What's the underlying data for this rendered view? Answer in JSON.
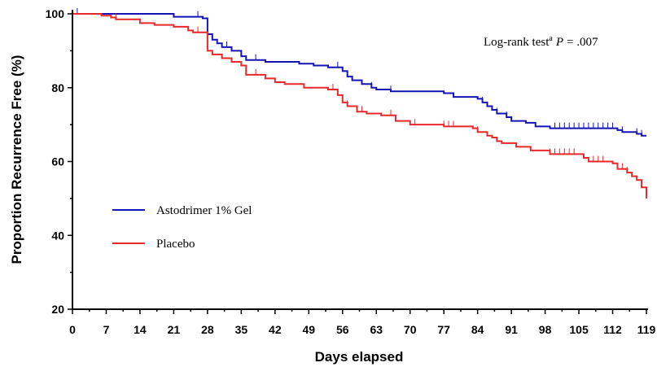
{
  "chart_data": {
    "type": "line",
    "subtype": "kaplan-meier step",
    "xlabel": "Days elapsed",
    "ylabel": "Proportion Recurrence Free (%)",
    "xlim": [
      0,
      119
    ],
    "ylim": [
      20,
      100
    ],
    "x_ticks": [
      0,
      7,
      14,
      21,
      28,
      35,
      42,
      49,
      56,
      63,
      70,
      77,
      84,
      91,
      98,
      105,
      112,
      119
    ],
    "y_ticks": [
      20,
      40,
      60,
      80,
      100
    ],
    "grid": false,
    "legend_position": "left",
    "annotation": {
      "prefix": "Log-rank test",
      "sup": "a",
      "p_symbol": "P",
      "p_value": "= .007"
    },
    "series": [
      {
        "name": "Astodrimer 1% Gel",
        "color": "#1414b4",
        "steps": [
          [
            0,
            100
          ],
          [
            21,
            99.2
          ],
          [
            27,
            98.8
          ],
          [
            28,
            94.5
          ],
          [
            29,
            93
          ],
          [
            30,
            92
          ],
          [
            31,
            91
          ],
          [
            33,
            90
          ],
          [
            35,
            88.5
          ],
          [
            36,
            87.5
          ],
          [
            40,
            87
          ],
          [
            47,
            86.5
          ],
          [
            50,
            86
          ],
          [
            53,
            85.5
          ],
          [
            56,
            84.5
          ],
          [
            57,
            83
          ],
          [
            58,
            82
          ],
          [
            60,
            81
          ],
          [
            62,
            80
          ],
          [
            63,
            79.5
          ],
          [
            66,
            79
          ],
          [
            77,
            78.5
          ],
          [
            79,
            77.5
          ],
          [
            84,
            77
          ],
          [
            85,
            76
          ],
          [
            86,
            75
          ],
          [
            87,
            74
          ],
          [
            88,
            73
          ],
          [
            90,
            72
          ],
          [
            91,
            71
          ],
          [
            94,
            70.5
          ],
          [
            96,
            69.5
          ],
          [
            99,
            69
          ],
          [
            113,
            68.5
          ],
          [
            114,
            68
          ],
          [
            117,
            67.5
          ],
          [
            118,
            67
          ],
          [
            119,
            67
          ]
        ],
        "censor": [
          1,
          26,
          32,
          38,
          55,
          62,
          66,
          85,
          88,
          90,
          100,
          101,
          102,
          103,
          104,
          105,
          106,
          107,
          108,
          109,
          110,
          111,
          112,
          114,
          117,
          118
        ]
      },
      {
        "name": "Placebo",
        "color": "#e8282b",
        "steps": [
          [
            0,
            100
          ],
          [
            6,
            99.5
          ],
          [
            8,
            99
          ],
          [
            9,
            98.5
          ],
          [
            14,
            97.5
          ],
          [
            17,
            97
          ],
          [
            21,
            96.5
          ],
          [
            24,
            95.5
          ],
          [
            25,
            95
          ],
          [
            28,
            90
          ],
          [
            29,
            89
          ],
          [
            31,
            88
          ],
          [
            33,
            87
          ],
          [
            35,
            86
          ],
          [
            36,
            83.5
          ],
          [
            40,
            82.5
          ],
          [
            42,
            81.5
          ],
          [
            44,
            81
          ],
          [
            48,
            80
          ],
          [
            53,
            79.5
          ],
          [
            55,
            78
          ],
          [
            56,
            76
          ],
          [
            57,
            75
          ],
          [
            59,
            73.5
          ],
          [
            61,
            73
          ],
          [
            64,
            72.5
          ],
          [
            67,
            71
          ],
          [
            70,
            70
          ],
          [
            77,
            69.5
          ],
          [
            83,
            69
          ],
          [
            84,
            68
          ],
          [
            86,
            67
          ],
          [
            87,
            66.5
          ],
          [
            88,
            65.5
          ],
          [
            89,
            65
          ],
          [
            92,
            64
          ],
          [
            95,
            63
          ],
          [
            99,
            62
          ],
          [
            106,
            61
          ],
          [
            107,
            60
          ],
          [
            112,
            59.5
          ],
          [
            113,
            58
          ],
          [
            115,
            57
          ],
          [
            116,
            56
          ],
          [
            117,
            55
          ],
          [
            118,
            53
          ],
          [
            119,
            50
          ]
        ],
        "censor": [
          9,
          26,
          38,
          54,
          57,
          60,
          66,
          71,
          77,
          78,
          79,
          84,
          99,
          100,
          101,
          102,
          103,
          104,
          108,
          109,
          110,
          114,
          115,
          118
        ]
      }
    ]
  }
}
